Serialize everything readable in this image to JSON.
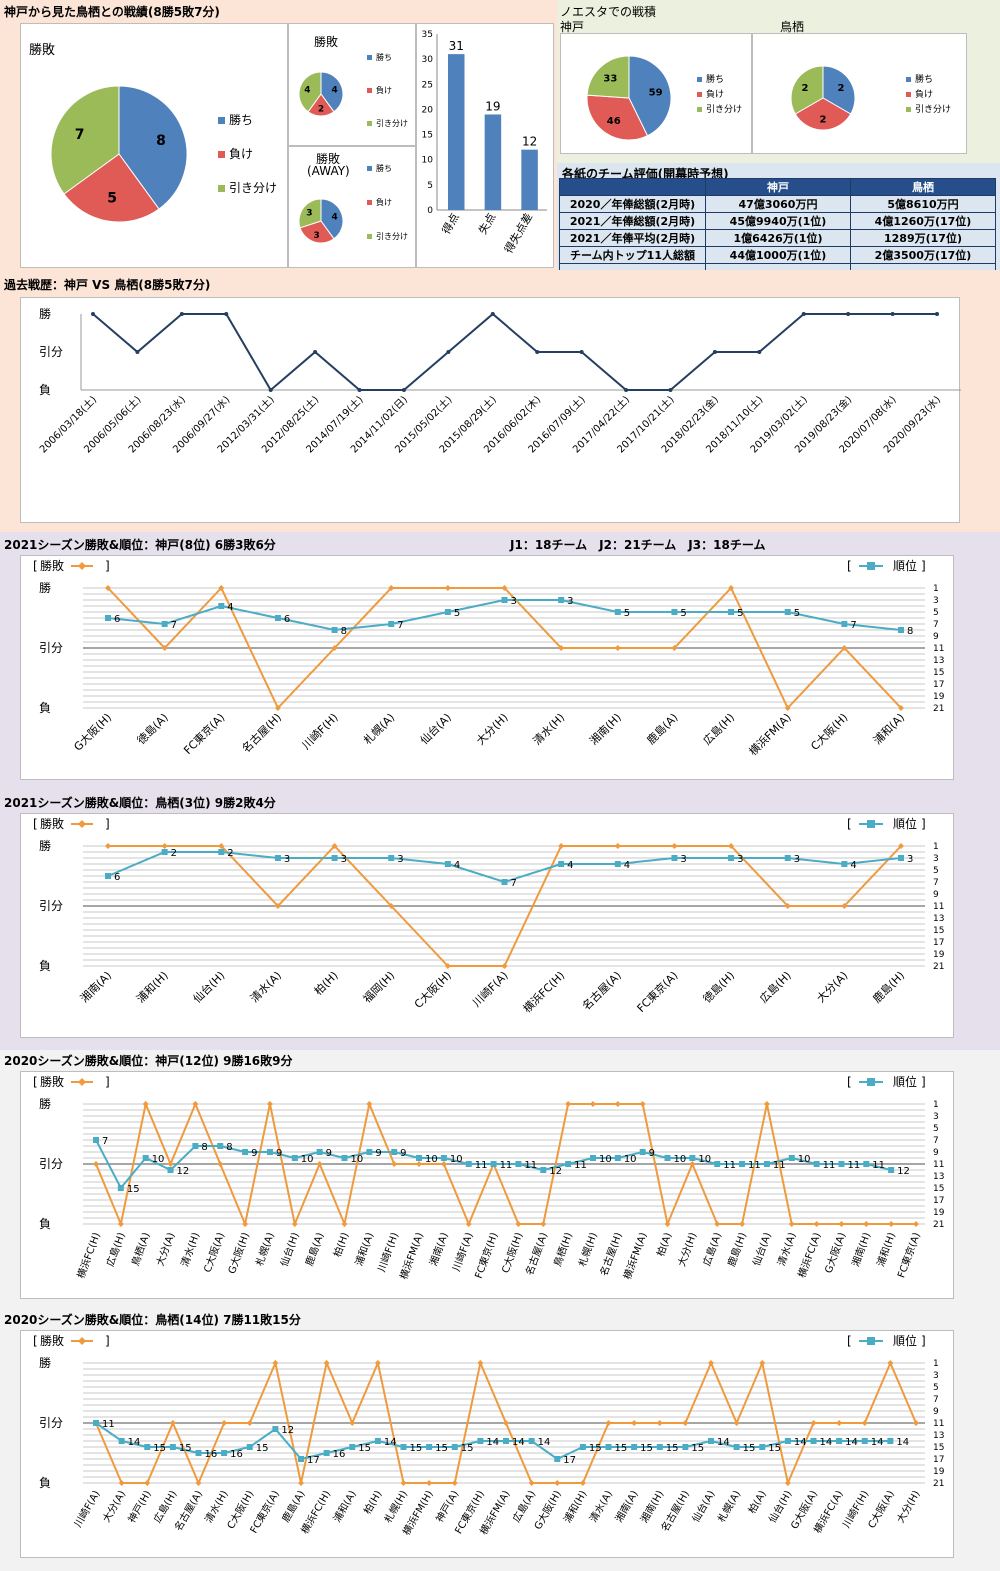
{
  "colors": {
    "win": "#4f81bd",
    "lose": "#e05a56",
    "draw": "#9bbb59",
    "bar": "#4f81bd",
    "line_result": "#f09a3e",
    "line_rank": "#4bacc6",
    "history": "#243f60"
  },
  "section1": {
    "title": "神戸から見た鳥栖との戦績(8勝5敗7分)",
    "pie_total": {
      "title": "勝敗",
      "legend": [
        "勝ち",
        "負け",
        "引き分け"
      ]
    },
    "pie_home": {
      "title": "勝敗",
      "legend": [
        "勝ち",
        "負け",
        "引き分け"
      ]
    },
    "pie_away": {
      "title": "勝敗",
      "subtitle": "(AWAY)",
      "legend": [
        "勝ち",
        "負け",
        "引き分け"
      ]
    }
  },
  "noesta": {
    "title": "ノエスタでの戦積",
    "kobe_label": "神戸",
    "tosu_label": "鳥栖",
    "legend": [
      "勝ち",
      "負け",
      "引き分け"
    ]
  },
  "evaluation": {
    "title": "各紙のチーム評価(開幕時予想)",
    "headers": [
      "",
      "神戸",
      "鳥栖"
    ],
    "rows": [
      [
        "2020／年俸総額(2月時)",
        "47億3060万円",
        "5億8610万円"
      ],
      [
        "2021／年俸総額(2月時)",
        "45億9940万(1位)",
        "4億1260万(17位)"
      ],
      [
        "2021／年俸平均(2月時)",
        "1億6426万(1位)",
        "1289万(17位)"
      ],
      [
        "チーム内トップ11人総額",
        "44億1000万(1位)",
        "2億3500万(17位)"
      ]
    ]
  },
  "section2": {
    "title": "過去戦歴：神戸 VS 鳥栖(8勝5敗7分)"
  },
  "section3": {
    "title": "2021シーズン勝敗&順位：神戸(8位) 6勝3敗6分",
    "note": "J1：18チーム　J2：21チーム　J3：18チーム"
  },
  "section4": {
    "title": "2021シーズン勝敗&順位：鳥栖(3位) 9勝2敗4分"
  },
  "section5": {
    "title": "2020シーズン勝敗&順位：神戸(12位) 9勝16敗9分"
  },
  "section6": {
    "title": "2020シーズン勝敗&順位：鳥栖(14位) 7勝11敗15分"
  },
  "chart_data": [
    {
      "id": "pie_total",
      "type": "pie",
      "title": "勝敗",
      "categories": [
        "勝ち",
        "負け",
        "引き分け"
      ],
      "values": [
        8,
        5,
        7
      ]
    },
    {
      "id": "pie_home",
      "type": "pie",
      "title": "勝敗",
      "categories": [
        "勝ち",
        "負け",
        "引き分け"
      ],
      "values": [
        4,
        2,
        4
      ]
    },
    {
      "id": "pie_away",
      "type": "pie",
      "title": "勝敗 (AWAY)",
      "categories": [
        "勝ち",
        "負け",
        "引き分け"
      ],
      "values": [
        4,
        3,
        3
      ]
    },
    {
      "id": "goals",
      "type": "bar",
      "categories": [
        "得点",
        "失点",
        "得失点差"
      ],
      "values": [
        31,
        19,
        12
      ],
      "ylim": [
        0,
        35
      ],
      "yticks": [
        0,
        5,
        10,
        15,
        20,
        25,
        30,
        35
      ]
    },
    {
      "id": "pie_noesta_kobe",
      "type": "pie",
      "title": "神戸",
      "categories": [
        "勝ち",
        "負け",
        "引き分け"
      ],
      "values": [
        59,
        46,
        33
      ]
    },
    {
      "id": "pie_noesta_tosu",
      "type": "pie",
      "title": "鳥栖",
      "categories": [
        "勝ち",
        "負け",
        "引き分け"
      ],
      "values": [
        2,
        2,
        2
      ]
    },
    {
      "id": "history",
      "type": "line",
      "ylabels": [
        "勝",
        "引分",
        "負"
      ],
      "x": [
        "2006/03/18(土)",
        "2006/05/06(土)",
        "2006/08/23(水)",
        "2006/09/27(水)",
        "2012/03/31(土)",
        "2012/08/25(土)",
        "2014/07/19(土)",
        "2014/11/02(日)",
        "2015/05/02(土)",
        "2015/08/29(土)",
        "2016/06/02(木)",
        "2016/07/09(土)",
        "2017/04/22(土)",
        "2017/10/21(土)",
        "2018/02/23(金)",
        "2018/11/10(土)",
        "2019/03/02(土)",
        "2019/08/23(金)",
        "2020/07/08(水)",
        "2020/09/23(水)"
      ],
      "results": [
        "勝",
        "引分",
        "勝",
        "勝",
        "負",
        "引分",
        "負",
        "負",
        "引分",
        "勝",
        "引分",
        "引分",
        "負",
        "負",
        "引分",
        "引分",
        "勝",
        "勝",
        "勝",
        "勝"
      ]
    },
    {
      "id": "kobe2021",
      "type": "line",
      "legend_result": "勝敗",
      "legend_rank": "順位",
      "ylabels": [
        "勝",
        "引分",
        "負"
      ],
      "rank_ticks": [
        1,
        3,
        5,
        7,
        9,
        11,
        13,
        15,
        17,
        19,
        21
      ],
      "x": [
        "G大阪(H)",
        "徳島(A)",
        "FC東京(A)",
        "名古屋(H)",
        "川崎F(H)",
        "札幌(A)",
        "仙台(A)",
        "大分(H)",
        "清水(H)",
        "湘南(H)",
        "鹿島(A)",
        "広島(H)",
        "横浜FM(A)",
        "C大阪(H)",
        "浦和(A)"
      ],
      "results": [
        "勝",
        "引分",
        "勝",
        "負",
        "引分",
        "勝",
        "勝",
        "勝",
        "引分",
        "引分",
        "引分",
        "勝",
        "負",
        "引分",
        "負"
      ],
      "ranks": [
        6,
        7,
        4,
        6,
        8,
        7,
        5,
        3,
        3,
        5,
        5,
        5,
        5,
        7,
        8
      ]
    },
    {
      "id": "tosu2021",
      "type": "line",
      "legend_result": "勝敗",
      "legend_rank": "順位",
      "ylabels": [
        "勝",
        "引分",
        "負"
      ],
      "rank_ticks": [
        1,
        3,
        5,
        7,
        9,
        11,
        13,
        15,
        17,
        19,
        21
      ],
      "x": [
        "湘南(A)",
        "浦和(H)",
        "仙台(H)",
        "清水(A)",
        "柏(H)",
        "福岡(H)",
        "C大阪(H)",
        "川崎F(A)",
        "横浜FC(H)",
        "名古屋(A)",
        "FC東京(A)",
        "徳島(H)",
        "広島(H)",
        "大分(A)",
        "鹿島(H)"
      ],
      "results": [
        "勝",
        "勝",
        "勝",
        "引分",
        "勝",
        "引分",
        "負",
        "負",
        "勝",
        "勝",
        "勝",
        "勝",
        "引分",
        "引分",
        "勝"
      ],
      "ranks": [
        6,
        2,
        2,
        3,
        3,
        3,
        4,
        7,
        4,
        4,
        3,
        3,
        3,
        4,
        3
      ]
    },
    {
      "id": "kobe2020",
      "type": "line",
      "legend_result": "勝敗",
      "legend_rank": "順位",
      "ylabels": [
        "勝",
        "引分",
        "負"
      ],
      "rank_ticks": [
        1,
        3,
        5,
        7,
        9,
        11,
        13,
        15,
        17,
        19,
        21
      ],
      "x": [
        "横浜FC(H)",
        "広島(H)",
        "鳥栖(A)",
        "大分(A)",
        "清水(H)",
        "C大阪(A)",
        "G大阪(H)",
        "札幌(A)",
        "仙台(H)",
        "鹿島(A)",
        "柏(H)",
        "浦和(A)",
        "川崎F(H)",
        "横浜FM(A)",
        "湘南(A)",
        "川崎F(A)",
        "FC東京(H)",
        "C大阪(H)",
        "名古屋(A)",
        "鳥栖(H)",
        "札幌(H)",
        "名古屋(H)",
        "横浜FM(A)",
        "柏(A)",
        "大分(H)",
        "広島(A)",
        "鹿島(H)",
        "仙台(A)",
        "清水(A)",
        "横浜FC(A)",
        "G大阪(A)",
        "湘南(H)",
        "浦和(H)",
        "FC東京(A)"
      ],
      "results": [
        "引分",
        "負",
        "勝",
        "引分",
        "勝",
        "引分",
        "負",
        "勝",
        "負",
        "引分",
        "負",
        "勝",
        "引分",
        "引分",
        "引分",
        "負",
        "引分",
        "負",
        "負",
        "勝",
        "勝",
        "勝",
        "勝",
        "負",
        "引分",
        "負",
        "負",
        "勝",
        "負",
        "負",
        "負",
        "負",
        "負",
        "負"
      ],
      "ranks": [
        7,
        15,
        10,
        12,
        8,
        8,
        9,
        9,
        10,
        9,
        10,
        9,
        9,
        10,
        10,
        11,
        11,
        11,
        12,
        11,
        10,
        10,
        9,
        10,
        10,
        11,
        11,
        11,
        10,
        11,
        11,
        11,
        12,
        null
      ]
    },
    {
      "id": "tosu2020",
      "type": "line",
      "legend_result": "勝敗",
      "legend_rank": "順位",
      "ylabels": [
        "勝",
        "引分",
        "負"
      ],
      "rank_ticks": [
        1,
        3,
        5,
        7,
        9,
        11,
        13,
        15,
        17,
        19,
        21
      ],
      "x": [
        "川崎F(A)",
        "大分(A)",
        "神戸(H)",
        "広島(H)",
        "名古屋(A)",
        "清水(H)",
        "C大阪(H)",
        "FC東京(A)",
        "鹿島(A)",
        "横浜FC(H)",
        "浦和(A)",
        "柏(H)",
        "札幌(H)",
        "横浜FM(H)",
        "神戸(A)",
        "FC東京(H)",
        "横浜FM(A)",
        "広島(A)",
        "G大阪(H)",
        "浦和(H)",
        "清水(A)",
        "湘南(A)",
        "湘南(H)",
        "名古屋(H)",
        "仙台(A)",
        "札幌(A)",
        "柏(A)",
        "仙台(H)",
        "G大阪(A)",
        "横浜FC(A)",
        "川崎F(H)",
        "C大阪(A)",
        "大分(H)"
      ],
      "results": [
        "引分",
        "負",
        "負",
        "引分",
        "負",
        "引分",
        "引分",
        "勝",
        "負",
        "勝",
        "引分",
        "勝",
        "負",
        "負",
        "負",
        "勝",
        "引分",
        "負",
        "負",
        "負",
        "引分",
        "引分",
        "引分",
        "引分",
        "勝",
        "引分",
        "勝",
        "負",
        "引分",
        "引分",
        "引分",
        "勝",
        "引分"
      ],
      "ranks": [
        11,
        14,
        15,
        15,
        16,
        16,
        15,
        12,
        17,
        16,
        15,
        14,
        15,
        15,
        15,
        14,
        14,
        14,
        17,
        15,
        15,
        15,
        15,
        15,
        14,
        15,
        15,
        14,
        14,
        14,
        14,
        14,
        null
      ]
    }
  ]
}
